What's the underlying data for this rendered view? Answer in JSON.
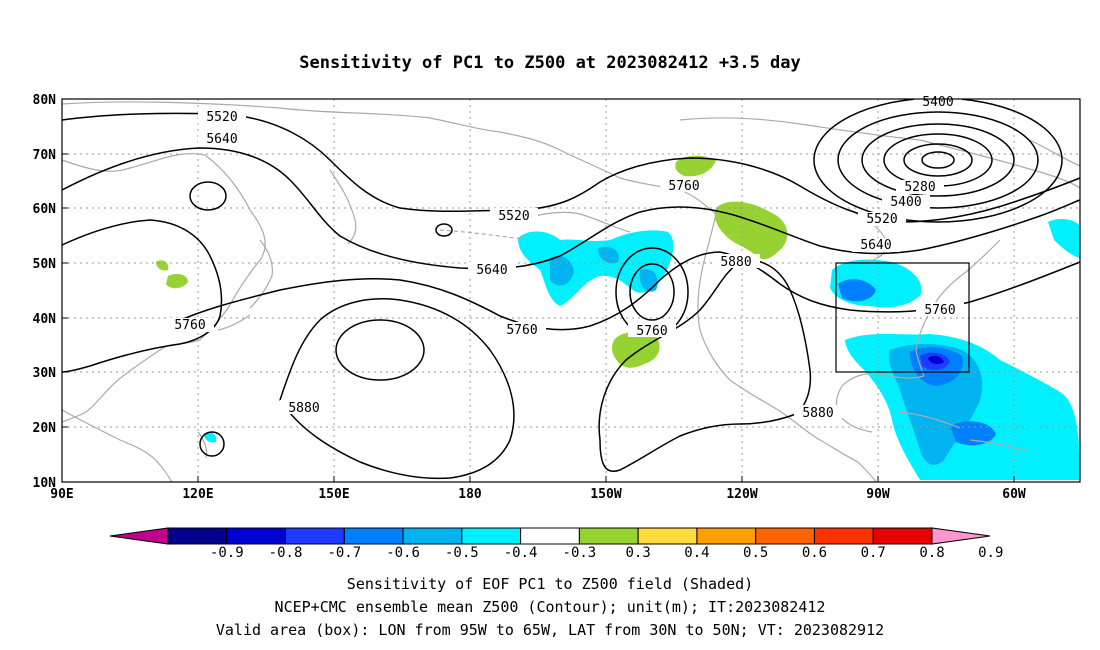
{
  "title": "Sensitivity of PC1 to Z500 at 2023082412 +3.5 day",
  "lat_labels": [
    "80N",
    "70N",
    "60N",
    "50N",
    "40N",
    "30N",
    "20N",
    "10N"
  ],
  "lon_labels": [
    "90E",
    "120E",
    "150E",
    "180",
    "150W",
    "120W",
    "90W",
    "60W"
  ],
  "contour_labels": [
    "5400",
    "5520",
    "5640",
    "5280",
    "5400",
    "5520",
    "5640",
    "5760",
    "5520",
    "5640",
    "5760",
    "5760",
    "5760",
    "5880",
    "5880",
    "5880",
    "5760"
  ],
  "colorbar": {
    "labels": [
      "-0.9",
      "-0.8",
      "-0.7",
      "-0.6",
      "-0.5",
      "-0.4",
      "-0.3",
      "0.3",
      "0.4",
      "0.5",
      "0.6",
      "0.7",
      "0.8",
      "0.9"
    ],
    "colors": [
      "#c0008c",
      "#00008c",
      "#0000d2",
      "#1e3cff",
      "#0080ff",
      "#00b4f0",
      "#00f0ff",
      "#ffffff",
      "#96d232",
      "#ffdc3c",
      "#ffa000",
      "#ff6400",
      "#ff3200",
      "#e60000",
      "#ff96d2"
    ]
  },
  "caption": {
    "line1": "Sensitivity of EOF PC1 to Z500 field (Shaded)",
    "line2": "NCEP+CMC ensemble mean Z500 (Contour); unit(m); IT:2023082412",
    "line3": "Valid area (box): LON from 95W to 65W, LAT from 30N to 50N; VT: 2023082912"
  },
  "map_style": {
    "coast_color": "#aaaaaa",
    "contour_color": "#000000",
    "grid_color": "#999999"
  }
}
